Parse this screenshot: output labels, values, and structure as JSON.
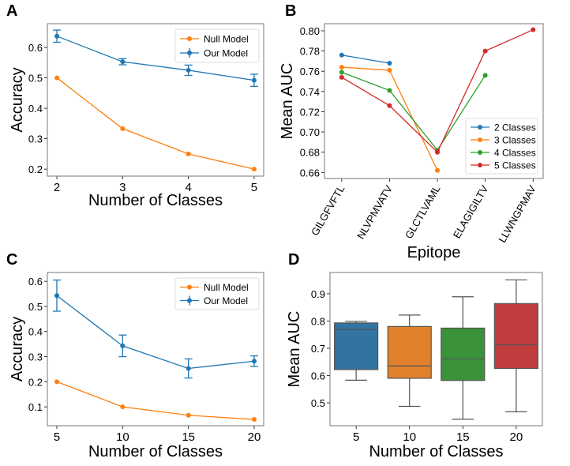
{
  "chart_data": [
    {
      "panel": "A",
      "type": "line",
      "xlabel": "Number of Classes",
      "ylabel": "Accuracy",
      "x": [
        2,
        3,
        4,
        5
      ],
      "xticks": [
        "2",
        "3",
        "4",
        "5"
      ],
      "yticks": [
        "0.2",
        "0.3",
        "0.4",
        "0.5",
        "0.6"
      ],
      "xlim": [
        1.855,
        5.145
      ],
      "ylim": [
        0.177,
        0.678
      ],
      "legend": "top-right",
      "series": [
        {
          "name": "Null Model",
          "color": "#ff7f0e",
          "values": [
            0.5,
            0.333,
            0.25,
            0.2
          ]
        },
        {
          "name": "Our Model",
          "color": "#1f77b4",
          "values": [
            0.637,
            0.553,
            0.525,
            0.492
          ],
          "errors": [
            0.02,
            0.01,
            0.017,
            0.02
          ]
        }
      ]
    },
    {
      "panel": "B",
      "type": "line",
      "xlabel": "Epitope",
      "ylabel": "Mean AUC",
      "categories": [
        "GILGFVFTL",
        "NLVPMVATV",
        "GLCTLVAML",
        "ELAGIGILTV",
        "LLWNGPMAV"
      ],
      "yticks": [
        "0.66",
        "0.68",
        "0.70",
        "0.72",
        "0.74",
        "0.76",
        "0.78",
        "0.80"
      ],
      "ylim": [
        0.654,
        0.807
      ],
      "legend": "lower-right",
      "series": [
        {
          "name": "2 Classes",
          "color": "#1f77b4",
          "values": [
            0.776,
            0.768,
            null,
            null,
            null
          ]
        },
        {
          "name": "3 Classes",
          "color": "#ff7f0e",
          "values": [
            0.764,
            0.761,
            0.662,
            null,
            null
          ]
        },
        {
          "name": "4 Classes",
          "color": "#2ca02c",
          "values": [
            0.759,
            0.741,
            0.682,
            0.756,
            null
          ]
        },
        {
          "name": "5 Classes",
          "color": "#d62728",
          "values": [
            0.754,
            0.726,
            0.68,
            0.78,
            0.801
          ]
        }
      ]
    },
    {
      "panel": "C",
      "type": "line",
      "xlabel": "Number of Classes",
      "ylabel": "Accuracy",
      "x": [
        5,
        10,
        15,
        20
      ],
      "xticks": [
        "5",
        "10",
        "15",
        "20"
      ],
      "yticks": [
        "0.1",
        "0.2",
        "0.3",
        "0.4",
        "0.5",
        "0.6"
      ],
      "xlim": [
        4.28,
        20.72
      ],
      "ylim": [
        0.025,
        0.635
      ],
      "legend": "top-right",
      "series": [
        {
          "name": "Null Model",
          "color": "#ff7f0e",
          "values": [
            0.2,
            0.1,
            0.0667,
            0.05
          ]
        },
        {
          "name": "Our Model",
          "color": "#1f77b4",
          "values": [
            0.543,
            0.343,
            0.253,
            0.282
          ],
          "errors": [
            0.062,
            0.043,
            0.038,
            0.021
          ]
        }
      ]
    },
    {
      "panel": "D",
      "type": "box",
      "xlabel": "Number of Classes",
      "ylabel": "Mean AUC",
      "categories": [
        "5",
        "10",
        "15",
        "20"
      ],
      "yticks": [
        "0.5",
        "0.6",
        "0.7",
        "0.8",
        "0.9"
      ],
      "ylim": [
        0.416,
        0.978
      ],
      "boxes": [
        {
          "color": "#3274a1",
          "whisker_low": 0.583,
          "q1": 0.622,
          "median": 0.769,
          "q3": 0.793,
          "whisker_high": 0.799
        },
        {
          "color": "#e1812c",
          "whisker_low": 0.487,
          "q1": 0.59,
          "median": 0.635,
          "q3": 0.78,
          "whisker_high": 0.822
        },
        {
          "color": "#3a923a",
          "whisker_low": 0.44,
          "q1": 0.582,
          "median": 0.661,
          "q3": 0.774,
          "whisker_high": 0.889
        },
        {
          "color": "#c03d3e",
          "whisker_low": 0.467,
          "q1": 0.626,
          "median": 0.713,
          "q3": 0.864,
          "whisker_high": 0.951
        }
      ]
    }
  ]
}
